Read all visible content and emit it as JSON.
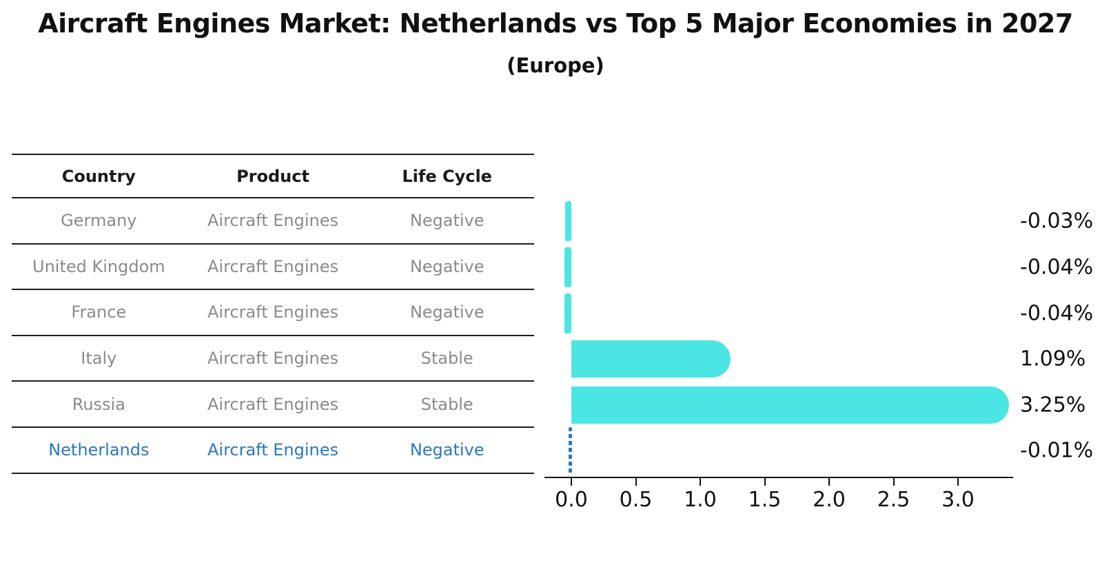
{
  "title": "Aircraft Engines Market: Netherlands vs Top 5 Major Economies in 2027",
  "subtitle": "(Europe)",
  "table": {
    "headers": [
      "Country",
      "Product",
      "Life Cycle"
    ],
    "rows": [
      {
        "country": "Germany",
        "product": "Aircraft Engines",
        "life_cycle": "Negative",
        "highlight": false
      },
      {
        "country": "United Kingdom",
        "product": "Aircraft Engines",
        "life_cycle": "Negative",
        "highlight": false
      },
      {
        "country": "France",
        "product": "Aircraft Engines",
        "life_cycle": "Negative",
        "highlight": false
      },
      {
        "country": "Italy",
        "product": "Aircraft Engines",
        "life_cycle": "Stable",
        "highlight": false
      },
      {
        "country": "Russia",
        "product": "Aircraft Engines",
        "life_cycle": "Stable",
        "highlight": false
      },
      {
        "country": "Netherlands",
        "product": "Aircraft Engines",
        "life_cycle": "Negative",
        "highlight": true
      }
    ]
  },
  "chart_data": {
    "type": "bar",
    "orientation": "horizontal",
    "title": "Aircraft Engines Market: Netherlands vs Top 5 Major Economies in 2027 (Europe)",
    "categories": [
      "Germany",
      "United Kingdom",
      "France",
      "Italy",
      "Russia",
      "Netherlands"
    ],
    "values": [
      -0.03,
      -0.04,
      -0.04,
      1.09,
      3.25,
      -0.01
    ],
    "value_labels": [
      "-0.03%",
      "-0.04%",
      "-0.04%",
      "1.09%",
      "3.25%",
      "-0.01%"
    ],
    "xticks": [
      0.0,
      0.5,
      1.0,
      1.5,
      2.0,
      2.5,
      3.0
    ],
    "xtick_labels": [
      "0.0",
      "0.5",
      "1.0",
      "1.5",
      "2.0",
      "2.5",
      "3.0"
    ],
    "xlim": [
      -0.21,
      3.43
    ],
    "xlabel": "",
    "ylabel": "",
    "grid": false,
    "legend": false,
    "bar_color": "#4be6e4",
    "highlight_index": 5,
    "highlight_color": "#2878be",
    "highlight_style": "dashed-vertical-line"
  },
  "colors": {
    "background": "#ffffff",
    "text": "#111111",
    "muted_text": "#8a8a8a",
    "rule": "#1c1c1c",
    "bar": "#4be6e4",
    "highlight": "#2878be"
  }
}
